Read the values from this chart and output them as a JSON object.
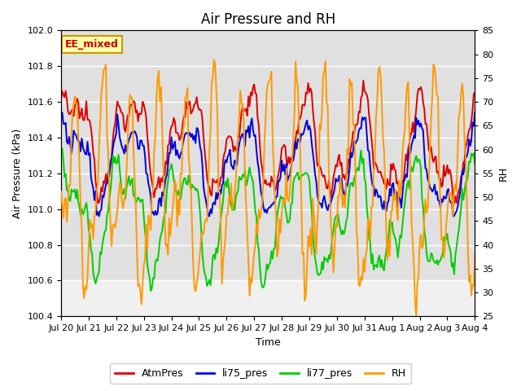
{
  "title": "Air Pressure and RH",
  "xlabel": "Time",
  "ylabel_left": "Air Pressure (kPa)",
  "ylabel_right": "RH",
  "annotation": "EE_mixed",
  "ylim_left": [
    100.4,
    102.0
  ],
  "ylim_right": [
    25,
    85
  ],
  "yticks_left": [
    100.4,
    100.6,
    100.8,
    101.0,
    101.2,
    101.4,
    101.6,
    101.8,
    102.0
  ],
  "yticks_right": [
    25,
    30,
    35,
    40,
    45,
    50,
    55,
    60,
    65,
    70,
    75,
    80,
    85
  ],
  "xtick_labels": [
    "Jul 20",
    "Jul 21",
    "Jul 22",
    "Jul 23",
    "Jul 24",
    "Jul 25",
    "Jul 26",
    "Jul 27",
    "Jul 28",
    "Jul 29",
    "Jul 30",
    "Jul 31",
    "Aug 1",
    "Aug 2",
    "Aug 3",
    "Aug 4"
  ],
  "color_atm": "#dd0000",
  "color_li75": "#0000dd",
  "color_li77": "#00cc00",
  "color_rh": "#ff9900",
  "legend_labels": [
    "AtmPres",
    "li75_pres",
    "li77_pres",
    "RH"
  ],
  "bg_upper_color": "#e0e0e0",
  "bg_lower_color": "#f0f0f0",
  "bg_band_ystart": 100.6,
  "linewidth": 1.4,
  "title_fontsize": 12,
  "label_fontsize": 9,
  "tick_fontsize": 8,
  "annotation_facecolor": "#ffffaa",
  "annotation_edgecolor": "#cc9900",
  "annotation_textcolor": "#cc0000",
  "figsize": [
    6.4,
    4.8
  ],
  "dpi": 100
}
